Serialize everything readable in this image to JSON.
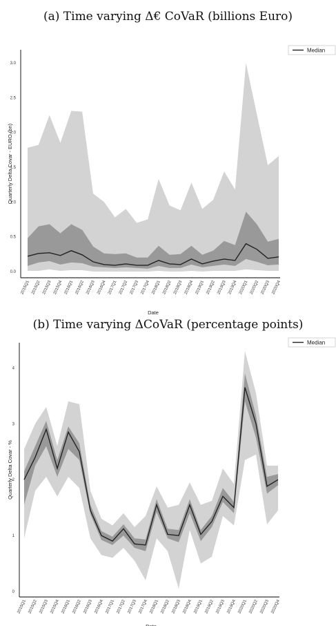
{
  "chart_data": [
    {
      "type": "area",
      "title": "(a) Time varying Δ€ CoVaR (billions Euro)",
      "xlabel": "Date",
      "ylabel": "Quarterly Delta Covar - EURO (bn)",
      "ylim": [
        -0.05,
        3.15
      ],
      "yticks": [
        "0.0",
        "0.5",
        "1.0",
        "1.5",
        "2.0",
        "2.5",
        "3.0"
      ],
      "grid": false,
      "legend_position": "top-right",
      "categories": [
        "2015Q1",
        "2015Q2",
        "2015Q3",
        "2015Q4",
        "2016Q1",
        "2016Q2",
        "2016Q3",
        "2016Q4",
        "2017Q1",
        "2017Q2",
        "2017Q3",
        "2017Q4",
        "2018Q1",
        "2018Q2",
        "2018Q3",
        "2018Q4",
        "2019Q1",
        "2019Q2",
        "2019Q3",
        "2019Q4",
        "2020Q1",
        "2020Q2",
        "2020Q3",
        "2020Q4"
      ],
      "series": [
        {
          "name": "Median",
          "values": [
            0.22,
            0.26,
            0.27,
            0.23,
            0.3,
            0.24,
            0.14,
            0.1,
            0.09,
            0.11,
            0.09,
            0.09,
            0.16,
            0.11,
            0.1,
            0.18,
            0.11,
            0.15,
            0.18,
            0.16,
            0.4,
            0.32,
            0.19,
            0.21
          ]
        },
        {
          "values": [
            0.48,
            0.65,
            0.68,
            0.55,
            0.68,
            0.6,
            0.36,
            0.26,
            0.25,
            0.26,
            0.2,
            0.2,
            0.37,
            0.24,
            0.25,
            0.37,
            0.24,
            0.3,
            0.44,
            0.38,
            0.86,
            0.68,
            0.43,
            0.47
          ]
        },
        {
          "values": [
            0.08,
            0.13,
            0.15,
            0.1,
            0.13,
            0.12,
            0.07,
            0.06,
            0.05,
            0.06,
            0.05,
            0.04,
            0.08,
            0.05,
            0.05,
            0.1,
            0.06,
            0.08,
            0.1,
            0.08,
            0.18,
            0.14,
            0.09,
            0.1
          ]
        },
        {
          "values": [
            1.78,
            1.82,
            2.25,
            1.85,
            2.31,
            2.3,
            1.12,
            1.0,
            0.78,
            0.9,
            0.7,
            0.75,
            1.33,
            0.95,
            0.88,
            1.28,
            0.9,
            1.03,
            1.44,
            1.18,
            3.0,
            2.26,
            1.53,
            1.66
          ]
        },
        {
          "values": [
            0.01,
            0.01,
            0.03,
            0.01,
            0.02,
            0.02,
            0.0,
            0.0,
            0.0,
            0.0,
            0.0,
            0.0,
            0.01,
            0.0,
            0.0,
            0.01,
            0.0,
            0.01,
            0.01,
            0.01,
            0.03,
            0.02,
            0.01,
            0.01
          ]
        }
      ],
      "colors": {
        "outer_band": "#d3d3d3",
        "inner_band": "#999999",
        "median": "#222222"
      }
    },
    {
      "type": "area",
      "title": "(b) Time varying ΔCoVaR (percentage points)",
      "xlabel": "Date",
      "ylabel": "Quarterly Delta Covar - %",
      "ylim": [
        -0.05,
        4.4
      ],
      "yticks": [
        "0",
        "1",
        "2",
        "3",
        "4"
      ],
      "grid": false,
      "legend_position": "top-right",
      "categories": [
        "2015Q1",
        "2015Q2",
        "2015Q3",
        "2015Q4",
        "2016Q1",
        "2016Q2",
        "2016Q3",
        "2016Q4",
        "2017Q1",
        "2017Q2",
        "2017Q3",
        "2017Q4",
        "2018Q1",
        "2018Q2",
        "2018Q3",
        "2018Q4",
        "2019Q1",
        "2019Q2",
        "2019Q3",
        "2019Q4",
        "2020Q1",
        "2020Q2",
        "2020Q3",
        "2020Q4"
      ],
      "series": [
        {
          "name": "Median",
          "values": [
            2.0,
            2.4,
            2.9,
            2.2,
            2.85,
            2.5,
            1.45,
            1.0,
            0.9,
            1.12,
            0.85,
            0.83,
            1.55,
            1.02,
            1.0,
            1.55,
            1.02,
            1.25,
            1.7,
            1.5,
            3.65,
            3.0,
            1.88,
            2.0
          ]
        },
        {
          "values": [
            2.15,
            2.6,
            3.05,
            2.35,
            2.95,
            2.65,
            1.55,
            1.08,
            0.98,
            1.2,
            0.95,
            0.93,
            1.65,
            1.12,
            1.1,
            1.65,
            1.1,
            1.35,
            1.85,
            1.6,
            3.9,
            3.15,
            2.05,
            2.1
          ]
        },
        {
          "values": [
            1.55,
            2.25,
            2.6,
            2.05,
            2.55,
            2.35,
            1.38,
            0.92,
            0.83,
            1.0,
            0.78,
            0.72,
            1.42,
            0.95,
            0.88,
            1.4,
            0.9,
            1.15,
            1.6,
            1.4,
            3.4,
            2.75,
            1.75,
            1.9
          ]
        },
        {
          "values": [
            2.55,
            3.0,
            3.3,
            2.6,
            3.4,
            3.35,
            1.8,
            1.3,
            1.18,
            1.4,
            1.15,
            1.35,
            1.88,
            1.5,
            1.55,
            1.95,
            1.55,
            1.62,
            2.2,
            1.92,
            4.3,
            3.55,
            2.25,
            2.25
          ]
        },
        {
          "values": [
            0.95,
            1.8,
            2.05,
            1.7,
            2.05,
            1.85,
            0.95,
            0.65,
            0.6,
            0.78,
            0.55,
            0.2,
            0.95,
            0.72,
            0.05,
            1.1,
            0.5,
            0.62,
            1.35,
            1.18,
            2.35,
            2.45,
            1.2,
            1.45
          ]
        }
      ],
      "colors": {
        "outer_band": "#d3d3d3",
        "inner_band": "#999999",
        "median": "#222222"
      }
    }
  ]
}
